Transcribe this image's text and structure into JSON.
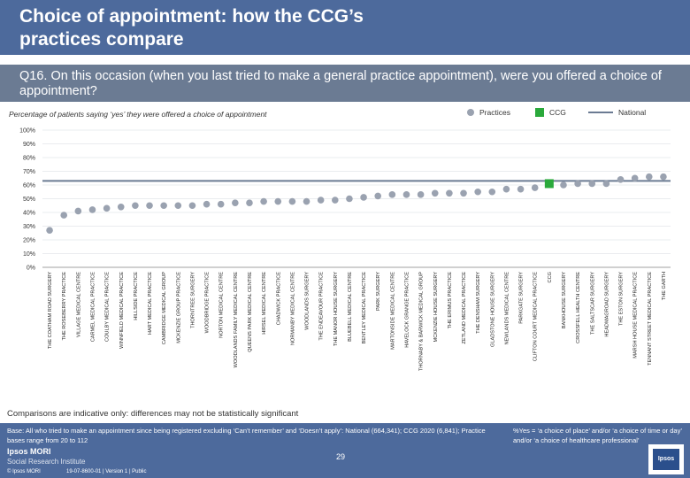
{
  "header": {
    "title": "Choice of appointment: how the CCG’s practices compare"
  },
  "question": "Q16. On this occasion (when you last tried to make a general practice appointment), were you offered a choice of appointment?",
  "colors": {
    "practice": "#9aa2b0",
    "ccg": "#2aa93b",
    "national": "#6b7b93",
    "header": "#4d6a9c"
  },
  "chart_data": {
    "type": "scatter",
    "title": "Percentage of patients saying ‘yes’ they were offered a choice of appointment",
    "yticks": [
      "0%",
      "10%",
      "20%",
      "30%",
      "40%",
      "50%",
      "60%",
      "70%",
      "80%",
      "90%",
      "100%"
    ],
    "ylim": [
      0,
      100
    ],
    "grid": true,
    "legend": {
      "position": "top-right",
      "practices": "Practices",
      "ccg": "CCG",
      "national": "National"
    },
    "national_value": 63,
    "categories": [
      "THE COATHAM ROAD SURGERY",
      "THE ROSEBERRY PRACTICE",
      "VILLAGE MEDICAL CENTRE",
      "CARMEL MEDICAL PRACTICE",
      "COULBY MEDICAL PRACTICE",
      "WINNFIELD MEDICAL PRACTICE",
      "HILLSIDE PRACTICE",
      "HART MEDICAL PRACTICE",
      "CAMBRIDGE MEDICAL GROUP",
      "MCKENZIE GROUP PRACTICE",
      "THORNTREE SURGERY",
      "WOODBRIDGE PRACTICE",
      "NORTON MEDICAL CENTRE",
      "WOODLANDS FAMILY MEDICAL CENTRE",
      "QUEENS PARK MEDICAL CENTRE",
      "HIRSEL MEDICAL CENTRE",
      "CHADWICK PRACTICE",
      "NORMANBY MEDICAL CENTRE",
      "WOODLANDS SURGERY",
      "THE ENDEAVOUR PRACTICE",
      "THE MANOR HOUSE SURGERY",
      "BLUEBELL MEDICAL CENTRE",
      "BENTLEY MEDICAL PRACTICE",
      "PARK SURGERY",
      "MARTONSIDE MEDICAL CENTRE",
      "HAVELOCK GRANGE PRACTICE",
      "THORNABY & BARWICK MEDICAL GROUP",
      "MCKENZIE HOUSE SURGERY",
      "THE ERIMUS PRACTICE",
      "ZETLAND MEDICAL PRACTICE",
      "THE DENSHAM SURGERY",
      "GLADSTONE HOUSE SURGERY",
      "NEWLANDS MEDICAL CENTRE",
      "PARKGATE SURGERY",
      "CLIFTON COURT MEDICAL PRACTICE",
      "CCG",
      "BANKHOUSE SURGERY",
      "CROSSFELL HEALTH CENTRE",
      "THE SALTSCAR SURGERY",
      "HEADMAGROAD SURGERY",
      "THE ESTON SURGERY",
      "MARSH HOUSE MEDICAL PRACTICE",
      "TENNANT STREET MEDICAL PRACTICE",
      "THE GARTH"
    ],
    "values": [
      27,
      38,
      41,
      42,
      43,
      44,
      45,
      45,
      45,
      45,
      45,
      46,
      46,
      47,
      47,
      48,
      48,
      48,
      48,
      49,
      49,
      50,
      51,
      52,
      53,
      53,
      53,
      54,
      54,
      54,
      55,
      55,
      57,
      57,
      58,
      61,
      60,
      61,
      61,
      61,
      64,
      65,
      66,
      66
    ],
    "ccg_index": 35
  },
  "comparisons_note": "Comparisons are indicative only: differences may not be statistically significant",
  "base": "Base: All who tried to make an appointment since being registered excluding ‘Can’t remember’ and ‘Doesn’t apply’: National (664,341); CCG 2020 (6,841); Practice bases range from 20 to 112",
  "footnote": "%Yes = ‘a choice of place’ and/or ‘a choice of time or day’ and/or ‘a choice of healthcare professional’",
  "page_number": "29",
  "logo": {
    "name": "Ipsos MORI",
    "tagline": "Social Research Institute",
    "badge": "Ipsos"
  },
  "copyright": "© Ipsos MORI",
  "reference": "19-07-8600-01 | Version 1 | Public"
}
